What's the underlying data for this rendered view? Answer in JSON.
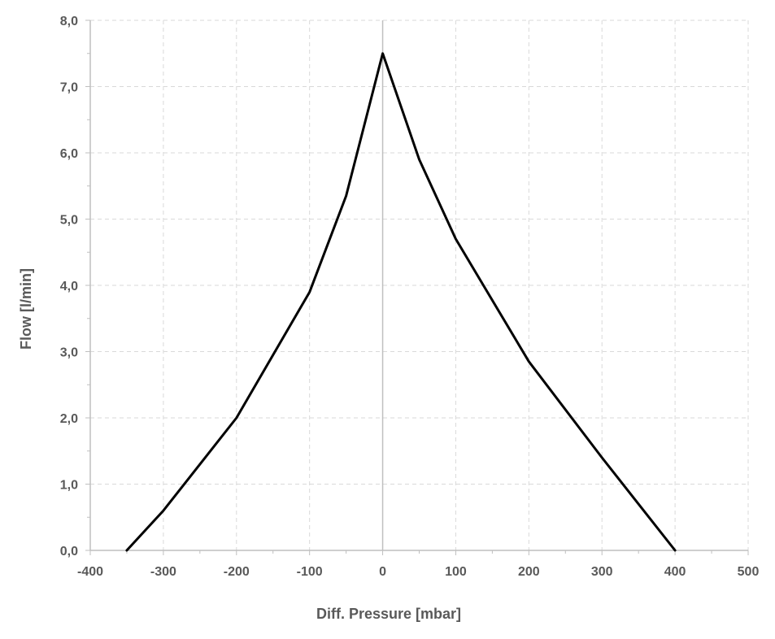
{
  "chart_data": {
    "type": "line",
    "title": "",
    "xlabel": "Diff. Pressure [mbar]",
    "ylabel": "Flow [l/min]",
    "xlim": [
      -400,
      500
    ],
    "ylim": [
      0,
      8
    ],
    "x_ticks": [
      -400,
      -300,
      -200,
      -100,
      0,
      100,
      200,
      300,
      400,
      500
    ],
    "x_tick_labels": [
      "-400",
      "-300",
      "-200",
      "-100",
      "0",
      "100",
      "200",
      "300",
      "400",
      "500"
    ],
    "y_ticks": [
      0,
      1,
      2,
      3,
      4,
      5,
      6,
      7,
      8
    ],
    "y_tick_labels": [
      "0,0",
      "1,0",
      "2,0",
      "3,0",
      "4,0",
      "5,0",
      "6,0",
      "7,0",
      "8,0"
    ],
    "grid": true,
    "legend": false,
    "series": [
      {
        "x": [
          -350,
          -300,
          -200,
          -100,
          -50,
          0,
          50,
          100,
          200,
          300,
          400
        ],
        "y": [
          0.0,
          0.6,
          2.0,
          3.9,
          5.35,
          7.5,
          5.9,
          4.7,
          2.85,
          1.4,
          0.0
        ],
        "color": "#000000"
      }
    ],
    "colors": {
      "line": "#000000",
      "grid": "#d9d9d9",
      "axis": "#bfbfbf",
      "zero_line": "#bfbfbf",
      "text": "#595959"
    }
  }
}
